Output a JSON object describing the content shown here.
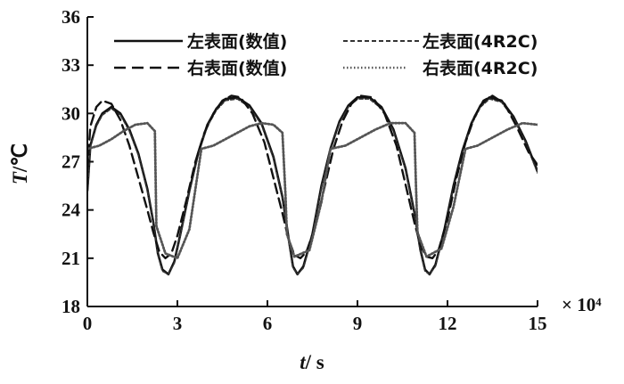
{
  "chart_data": {
    "type": "line",
    "xlabel_var": "t",
    "xlabel_unit": "/ s",
    "ylabel_var": "T",
    "ylabel_unit": "/℃",
    "x_multiplier": "× 10⁴",
    "xlim": [
      0,
      15
    ],
    "ylim": [
      18,
      36
    ],
    "xticks": [
      0,
      3,
      6,
      9,
      12,
      15
    ],
    "yticks": [
      18,
      21,
      24,
      27,
      30,
      33,
      36
    ],
    "grid": false,
    "legend_position": "top",
    "series": [
      {
        "name": "左表面(数值)",
        "style": "solid",
        "color": "#111111",
        "x": [
          0,
          0.1,
          0.3,
          0.5,
          0.8,
          1.1,
          1.4,
          1.7,
          2.0,
          2.2,
          2.35,
          2.5,
          2.7,
          2.9,
          3.1,
          3.4,
          3.7,
          4.0,
          4.3,
          4.6,
          5.0,
          5.4,
          5.8,
          6.2,
          6.5,
          6.7,
          6.85,
          7.0,
          7.2,
          7.5,
          7.8,
          8.1,
          8.4,
          8.7,
          9.0,
          9.4,
          9.8,
          10.2,
          10.6,
          10.9,
          11.1,
          11.25,
          11.4,
          11.6,
          11.9,
          12.2,
          12.5,
          12.8,
          13.1,
          13.4,
          13.8,
          14.2,
          14.6,
          15.0
        ],
        "y": [
          25.2,
          28.0,
          29.3,
          30.0,
          30.4,
          30.0,
          29.0,
          27.5,
          25.3,
          23.2,
          21.3,
          20.3,
          20.0,
          20.8,
          22.5,
          25.2,
          27.6,
          29.3,
          30.3,
          30.9,
          31.0,
          30.5,
          29.4,
          27.3,
          24.8,
          22.3,
          20.5,
          20.0,
          20.5,
          22.5,
          25.5,
          27.8,
          29.5,
          30.5,
          31.0,
          31.0,
          30.4,
          29.0,
          26.6,
          23.8,
          21.5,
          20.3,
          20.0,
          20.6,
          22.8,
          25.5,
          27.7,
          29.4,
          30.5,
          31.0,
          30.8,
          29.8,
          28.3,
          26.4
        ]
      },
      {
        "name": "左表面(4R2C)",
        "style": "dashed-fine",
        "color": "#333333",
        "x": [
          0,
          0.1,
          0.3,
          0.5,
          0.8,
          1.1,
          1.4,
          1.7,
          2.0,
          2.2,
          2.35,
          2.5,
          2.7,
          2.9,
          3.1,
          3.4,
          3.7,
          4.0,
          4.3,
          4.6,
          5.0,
          5.4,
          5.8,
          6.2,
          6.5,
          6.7,
          6.85,
          7.0,
          7.2,
          7.5,
          7.8,
          8.1,
          8.4,
          8.7,
          9.0,
          9.4,
          9.8,
          10.2,
          10.6,
          10.9,
          11.1,
          11.25,
          11.4,
          11.6,
          11.9,
          12.2,
          12.5,
          12.8,
          13.1,
          13.4,
          13.8,
          14.2,
          14.6,
          15.0
        ],
        "y": [
          25.0,
          27.9,
          29.2,
          29.9,
          30.3,
          29.9,
          28.9,
          27.4,
          25.2,
          23.1,
          21.2,
          20.2,
          20.0,
          20.7,
          22.4,
          25.1,
          27.5,
          29.2,
          30.2,
          30.8,
          30.9,
          30.4,
          29.3,
          27.2,
          24.7,
          22.2,
          20.4,
          20.0,
          20.4,
          22.4,
          25.4,
          27.7,
          29.4,
          30.4,
          30.9,
          30.9,
          30.3,
          28.9,
          26.5,
          23.7,
          21.4,
          20.2,
          20.0,
          20.5,
          22.7,
          25.4,
          27.6,
          29.3,
          30.4,
          30.9,
          30.7,
          29.7,
          28.2,
          26.3
        ]
      },
      {
        "name": "右表面(数值)",
        "style": "dashed",
        "color": "#111111",
        "x": [
          0,
          0.1,
          0.3,
          0.5,
          0.8,
          1.1,
          1.4,
          1.7,
          2.0,
          2.2,
          2.4,
          2.6,
          2.8,
          3.0,
          3.3,
          3.6,
          3.9,
          4.2,
          4.5,
          4.8,
          5.1,
          5.5,
          5.9,
          6.2,
          6.5,
          6.7,
          6.9,
          7.1,
          7.3,
          7.6,
          7.9,
          8.2,
          8.5,
          8.8,
          9.1,
          9.5,
          9.9,
          10.3,
          10.6,
          10.9,
          11.1,
          11.3,
          11.5,
          11.7,
          12.0,
          12.3,
          12.6,
          12.9,
          13.2,
          13.5,
          13.9,
          14.3,
          14.7,
          15.0
        ],
        "y": [
          26.5,
          29.2,
          30.4,
          30.8,
          30.6,
          29.6,
          28.0,
          26.0,
          24.0,
          22.6,
          21.4,
          21.0,
          21.3,
          22.4,
          24.6,
          27.0,
          28.8,
          30.0,
          30.8,
          31.1,
          31.0,
          30.0,
          28.2,
          26.0,
          23.8,
          22.2,
          21.2,
          21.0,
          21.4,
          23.0,
          25.4,
          27.8,
          29.5,
          30.6,
          31.1,
          31.0,
          30.0,
          28.0,
          25.6,
          23.2,
          21.8,
          21.1,
          21.0,
          21.5,
          23.4,
          26.0,
          28.2,
          29.8,
          30.8,
          31.1,
          30.6,
          29.2,
          27.6,
          26.8
        ]
      },
      {
        "name": "右表面(4R2C)",
        "style": "dotted",
        "color": "#555555",
        "x": [
          0,
          0.4,
          0.8,
          1.2,
          1.6,
          2.0,
          2.25,
          2.3,
          2.6,
          3.0,
          3.4,
          3.8,
          4.2,
          4.6,
          5.0,
          5.4,
          5.8,
          6.2,
          6.5,
          6.6,
          6.65,
          6.9,
          7.4,
          7.8,
          8.1,
          8.6,
          9.1,
          9.6,
          10.1,
          10.6,
          10.9,
          10.95,
          11.0,
          11.3,
          11.8,
          12.2,
          12.6,
          13.0,
          13.5,
          14.0,
          14.5,
          15.0
        ],
        "y": [
          27.8,
          28.0,
          28.4,
          28.9,
          29.3,
          29.4,
          28.9,
          23.0,
          21.3,
          21.0,
          22.8,
          27.8,
          28.0,
          28.4,
          28.8,
          29.2,
          29.4,
          29.3,
          28.8,
          25.0,
          22.5,
          21.1,
          21.5,
          24.5,
          27.8,
          28.0,
          28.5,
          29.0,
          29.4,
          29.4,
          28.8,
          25.5,
          22.6,
          21.1,
          21.6,
          24.2,
          27.8,
          28.0,
          28.5,
          29.0,
          29.4,
          29.3
        ]
      }
    ]
  }
}
